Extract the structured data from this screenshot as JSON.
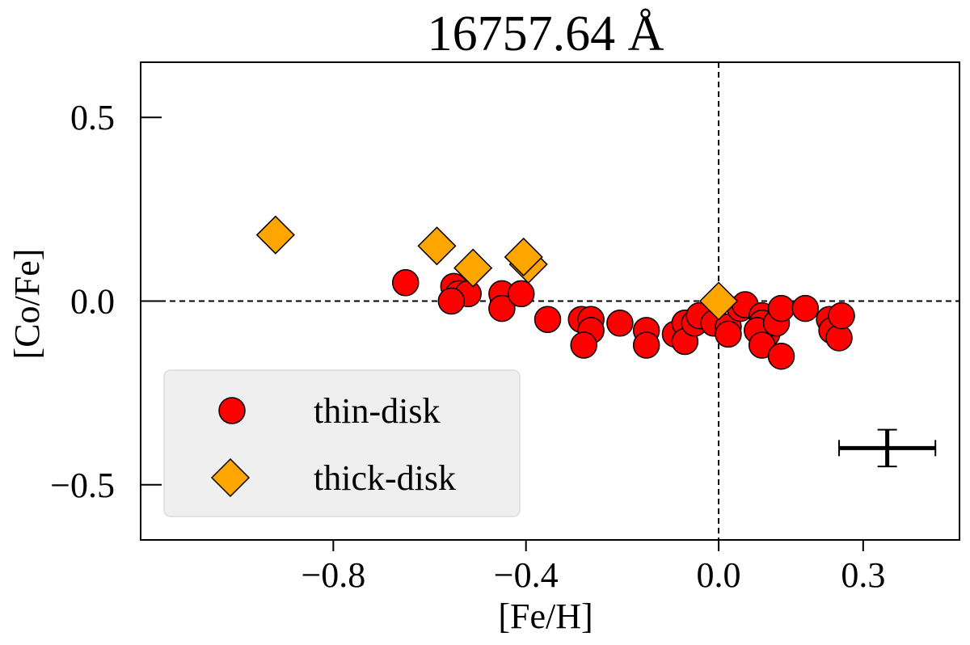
{
  "chart_data": {
    "type": "scatter",
    "title": "16757.64 Å",
    "xlabel": "[Fe/H]",
    "ylabel": "[Co/Fe]",
    "xlim": [
      -1.2,
      0.5
    ],
    "ylim": [
      -0.65,
      0.65
    ],
    "xticks": [
      {
        "value": -0.8,
        "label": "−0.8"
      },
      {
        "value": -0.4,
        "label": "−0.4"
      },
      {
        "value": 0.0,
        "label": "0.0"
      },
      {
        "value": 0.3,
        "label": "0.3"
      }
    ],
    "yticks": [
      {
        "value": 0.5,
        "label": "0.5"
      },
      {
        "value": 0.0,
        "label": "0.0"
      },
      {
        "value": -0.5,
        "label": "−0.5"
      }
    ],
    "reference_lines": {
      "x": 0.0,
      "y": 0.0
    },
    "legend_position": "lower-left",
    "error_bar": {
      "x": 0.35,
      "y": -0.4,
      "xerr": 0.1,
      "yerr": 0.05
    },
    "series": [
      {
        "name": "thin-disk",
        "marker": "circle",
        "color": "#ff0000",
        "points": [
          [
            -0.65,
            0.05
          ],
          [
            -0.55,
            0.04
          ],
          [
            -0.54,
            0.02
          ],
          [
            -0.52,
            0.02
          ],
          [
            -0.555,
            0.0
          ],
          [
            -0.45,
            0.02
          ],
          [
            -0.45,
            -0.02
          ],
          [
            -0.41,
            0.02
          ],
          [
            -0.355,
            -0.05
          ],
          [
            -0.285,
            -0.05
          ],
          [
            -0.265,
            -0.05
          ],
          [
            -0.265,
            -0.08
          ],
          [
            -0.28,
            -0.12
          ],
          [
            -0.205,
            -0.06
          ],
          [
            -0.15,
            -0.08
          ],
          [
            -0.15,
            -0.12
          ],
          [
            -0.09,
            -0.09
          ],
          [
            -0.07,
            -0.06
          ],
          [
            -0.07,
            -0.11
          ],
          [
            -0.05,
            -0.06
          ],
          [
            -0.04,
            -0.04
          ],
          [
            -0.01,
            -0.06
          ],
          [
            0.02,
            -0.07
          ],
          [
            0.02,
            -0.09
          ],
          [
            0.045,
            -0.02
          ],
          [
            0.055,
            -0.01
          ],
          [
            0.09,
            -0.04
          ],
          [
            0.09,
            -0.06
          ],
          [
            0.1,
            -0.09
          ],
          [
            0.08,
            -0.08
          ],
          [
            0.09,
            -0.12
          ],
          [
            0.12,
            -0.06
          ],
          [
            0.13,
            -0.02
          ],
          [
            0.13,
            -0.15
          ],
          [
            0.18,
            -0.02
          ],
          [
            0.23,
            -0.05
          ],
          [
            0.235,
            -0.08
          ],
          [
            0.25,
            -0.1
          ],
          [
            0.255,
            -0.04
          ]
        ]
      },
      {
        "name": "thick-disk",
        "marker": "diamond",
        "color": "#ffa500",
        "points": [
          [
            -0.92,
            0.18
          ],
          [
            -0.585,
            0.15
          ],
          [
            -0.51,
            0.09
          ],
          [
            -0.395,
            0.1
          ],
          [
            -0.405,
            0.12
          ],
          [
            0.0,
            0.0
          ]
        ]
      }
    ]
  }
}
